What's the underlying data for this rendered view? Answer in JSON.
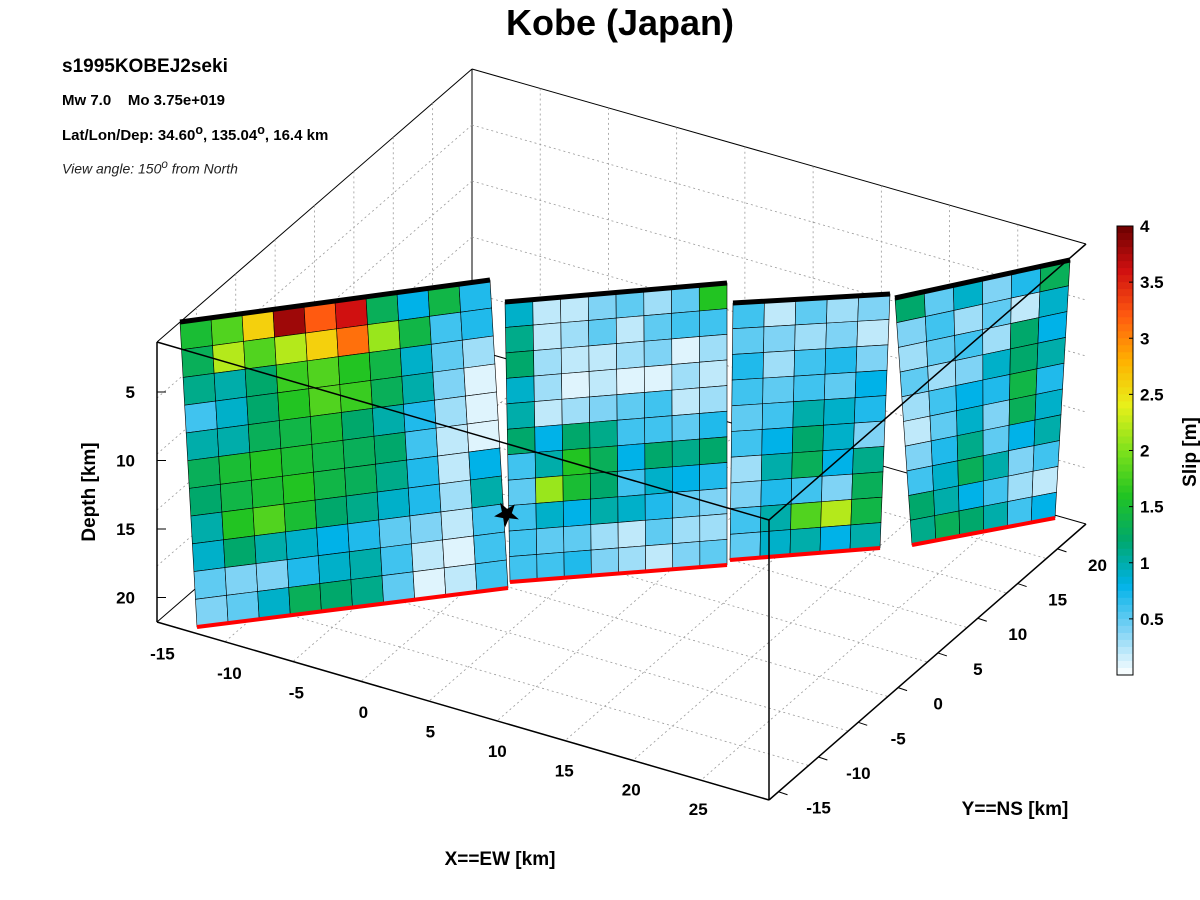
{
  "title": "Kobe (Japan)",
  "info": {
    "event_id": "s1995KOBEJ2seki",
    "magnitude": "Mw 7.0",
    "moment": "Mo 3.75e+019",
    "location_label": "Lat/Lon/Dep:",
    "lat": "34.60",
    "lon": "135.04",
    "depth": "16.4 km",
    "view_prefix": "View angle: 150",
    "view_suffix": " from North"
  },
  "chart_data": {
    "type": "heatmap",
    "title": "Kobe (Japan)",
    "view_angle_deg_from_north": 150,
    "axes": {
      "x": {
        "label": "X==EW [km]",
        "ticks": [
          -15,
          -10,
          -5,
          0,
          5,
          10,
          15,
          20,
          25
        ]
      },
      "y": {
        "label": "Y==NS [km]",
        "ticks": [
          -15,
          -10,
          -5,
          0,
          5,
          10,
          15,
          20
        ]
      },
      "z": {
        "label": "Depth [km]",
        "ticks": [
          5,
          10,
          15,
          20
        ],
        "reversed": true
      }
    },
    "grid": true,
    "colorbar": {
      "label": "Slip [m]",
      "ticks": [
        0.5,
        1,
        1.5,
        2,
        2.5,
        3,
        3.5,
        4
      ],
      "range": [
        0,
        4
      ],
      "placement": "right",
      "colors": [
        "#ffffff",
        "#7fd3f5",
        "#00b2e8",
        "#00a86b",
        "#22c422",
        "#7fe21c",
        "#e8f01a",
        "#ffb000",
        "#ff5a10",
        "#d01010",
        "#6b0000"
      ]
    },
    "hypocenter": {
      "marker": "star",
      "color": "#000000"
    },
    "top_edge_color": "#000000",
    "bottom_edge_color": "#ff0000",
    "segments": [
      {
        "name": "segment-1",
        "slip": [
          [
            1.5,
            1.8,
            2.6,
            3.8,
            3.2,
            3.6,
            1.3,
            0.8,
            1.4,
            0.7
          ],
          [
            1.3,
            2.2,
            1.8,
            2.2,
            2.6,
            3.1,
            2.1,
            1.4,
            0.6,
            0.7
          ],
          [
            1.1,
            1.0,
            1.2,
            1.7,
            1.8,
            1.6,
            1.4,
            0.9,
            0.5,
            0.3
          ],
          [
            0.6,
            0.9,
            1.2,
            1.6,
            1.8,
            1.7,
            1.3,
            1.0,
            0.4,
            0.1
          ],
          [
            1.0,
            1.0,
            1.3,
            1.4,
            1.5,
            1.2,
            1.0,
            0.7,
            0.3,
            0.1
          ],
          [
            1.3,
            1.5,
            1.6,
            1.5,
            1.4,
            1.3,
            1.2,
            0.6,
            0.2,
            0.1
          ],
          [
            1.2,
            1.4,
            1.5,
            1.6,
            1.4,
            1.3,
            1.1,
            0.7,
            0.2,
            0.8
          ],
          [
            1.0,
            1.6,
            1.8,
            1.5,
            1.2,
            1.1,
            0.9,
            0.7,
            0.3,
            1.0
          ],
          [
            0.9,
            1.2,
            1.0,
            0.9,
            0.8,
            0.7,
            0.5,
            0.4,
            0.2,
            0.6
          ],
          [
            0.5,
            0.4,
            0.4,
            0.7,
            0.9,
            1.0,
            0.6,
            0.2,
            0.1,
            0.6
          ],
          [
            0.4,
            0.5,
            0.9,
            1.3,
            1.2,
            1.1,
            0.5,
            0.1,
            0.2,
            0.6
          ]
        ]
      },
      {
        "name": "segment-2",
        "slip": [
          [
            0.9,
            0.2,
            0.2,
            0.4,
            0.5,
            0.3,
            0.5,
            1.6
          ],
          [
            1.1,
            0.2,
            0.3,
            0.5,
            0.2,
            0.5,
            0.6,
            0.6
          ],
          [
            1.2,
            0.3,
            0.2,
            0.2,
            0.3,
            0.4,
            0.1,
            0.3
          ],
          [
            0.9,
            0.3,
            0.1,
            0.2,
            0.1,
            0.1,
            0.3,
            0.2
          ],
          [
            1.0,
            0.2,
            0.3,
            0.4,
            0.5,
            0.6,
            0.2,
            0.3
          ],
          [
            1.2,
            0.8,
            1.2,
            1.1,
            0.6,
            0.6,
            0.5,
            0.7
          ],
          [
            0.6,
            1.0,
            1.6,
            1.3,
            0.8,
            1.2,
            1.1,
            1.2
          ],
          [
            0.5,
            2.1,
            1.5,
            1.2,
            0.6,
            0.9,
            0.8,
            0.7
          ],
          [
            0.6,
            0.9,
            0.8,
            1.0,
            0.9,
            0.7,
            0.5,
            0.4
          ],
          [
            0.6,
            0.5,
            0.5,
            0.3,
            0.2,
            0.5,
            0.3,
            0.3
          ],
          [
            0.6,
            0.6,
            0.7,
            0.4,
            0.3,
            0.2,
            0.4,
            0.5
          ]
        ]
      },
      {
        "name": "segment-3",
        "slip": [
          [
            0.6,
            0.2,
            0.5,
            0.3,
            0.4
          ],
          [
            0.5,
            0.4,
            0.3,
            0.4,
            0.2
          ],
          [
            0.7,
            0.3,
            0.6,
            0.7,
            0.4
          ],
          [
            0.6,
            0.5,
            0.6,
            0.5,
            0.8
          ],
          [
            0.5,
            0.6,
            1.0,
            0.9,
            0.7
          ],
          [
            0.6,
            0.8,
            1.2,
            0.9,
            0.4
          ],
          [
            0.3,
            1.0,
            1.3,
            0.8,
            1.1
          ],
          [
            0.4,
            0.7,
            0.6,
            0.4,
            1.3
          ],
          [
            0.6,
            1.0,
            1.8,
            2.2,
            1.4
          ],
          [
            0.5,
            0.9,
            1.0,
            0.8,
            1.0
          ]
        ]
      },
      {
        "name": "segment-4",
        "slip": [
          [
            1.2,
            0.5,
            0.9,
            0.4,
            0.7,
            1.3
          ],
          [
            0.4,
            0.6,
            0.3,
            0.5,
            0.2,
            0.9
          ],
          [
            0.3,
            0.5,
            0.6,
            0.3,
            1.2,
            0.8
          ],
          [
            0.5,
            0.3,
            0.4,
            0.9,
            1.2,
            1.0
          ],
          [
            0.3,
            0.6,
            0.8,
            0.7,
            1.4,
            0.7
          ],
          [
            0.2,
            0.5,
            0.9,
            0.4,
            1.3,
            0.9
          ],
          [
            0.4,
            0.7,
            1.1,
            0.5,
            0.8,
            1.0
          ],
          [
            0.6,
            0.9,
            1.3,
            1.0,
            0.4,
            0.6
          ],
          [
            1.2,
            1.0,
            0.8,
            0.6,
            0.3,
            0.2
          ],
          [
            1.1,
            1.3,
            1.2,
            1.0,
            0.6,
            0.8
          ]
        ]
      }
    ]
  }
}
